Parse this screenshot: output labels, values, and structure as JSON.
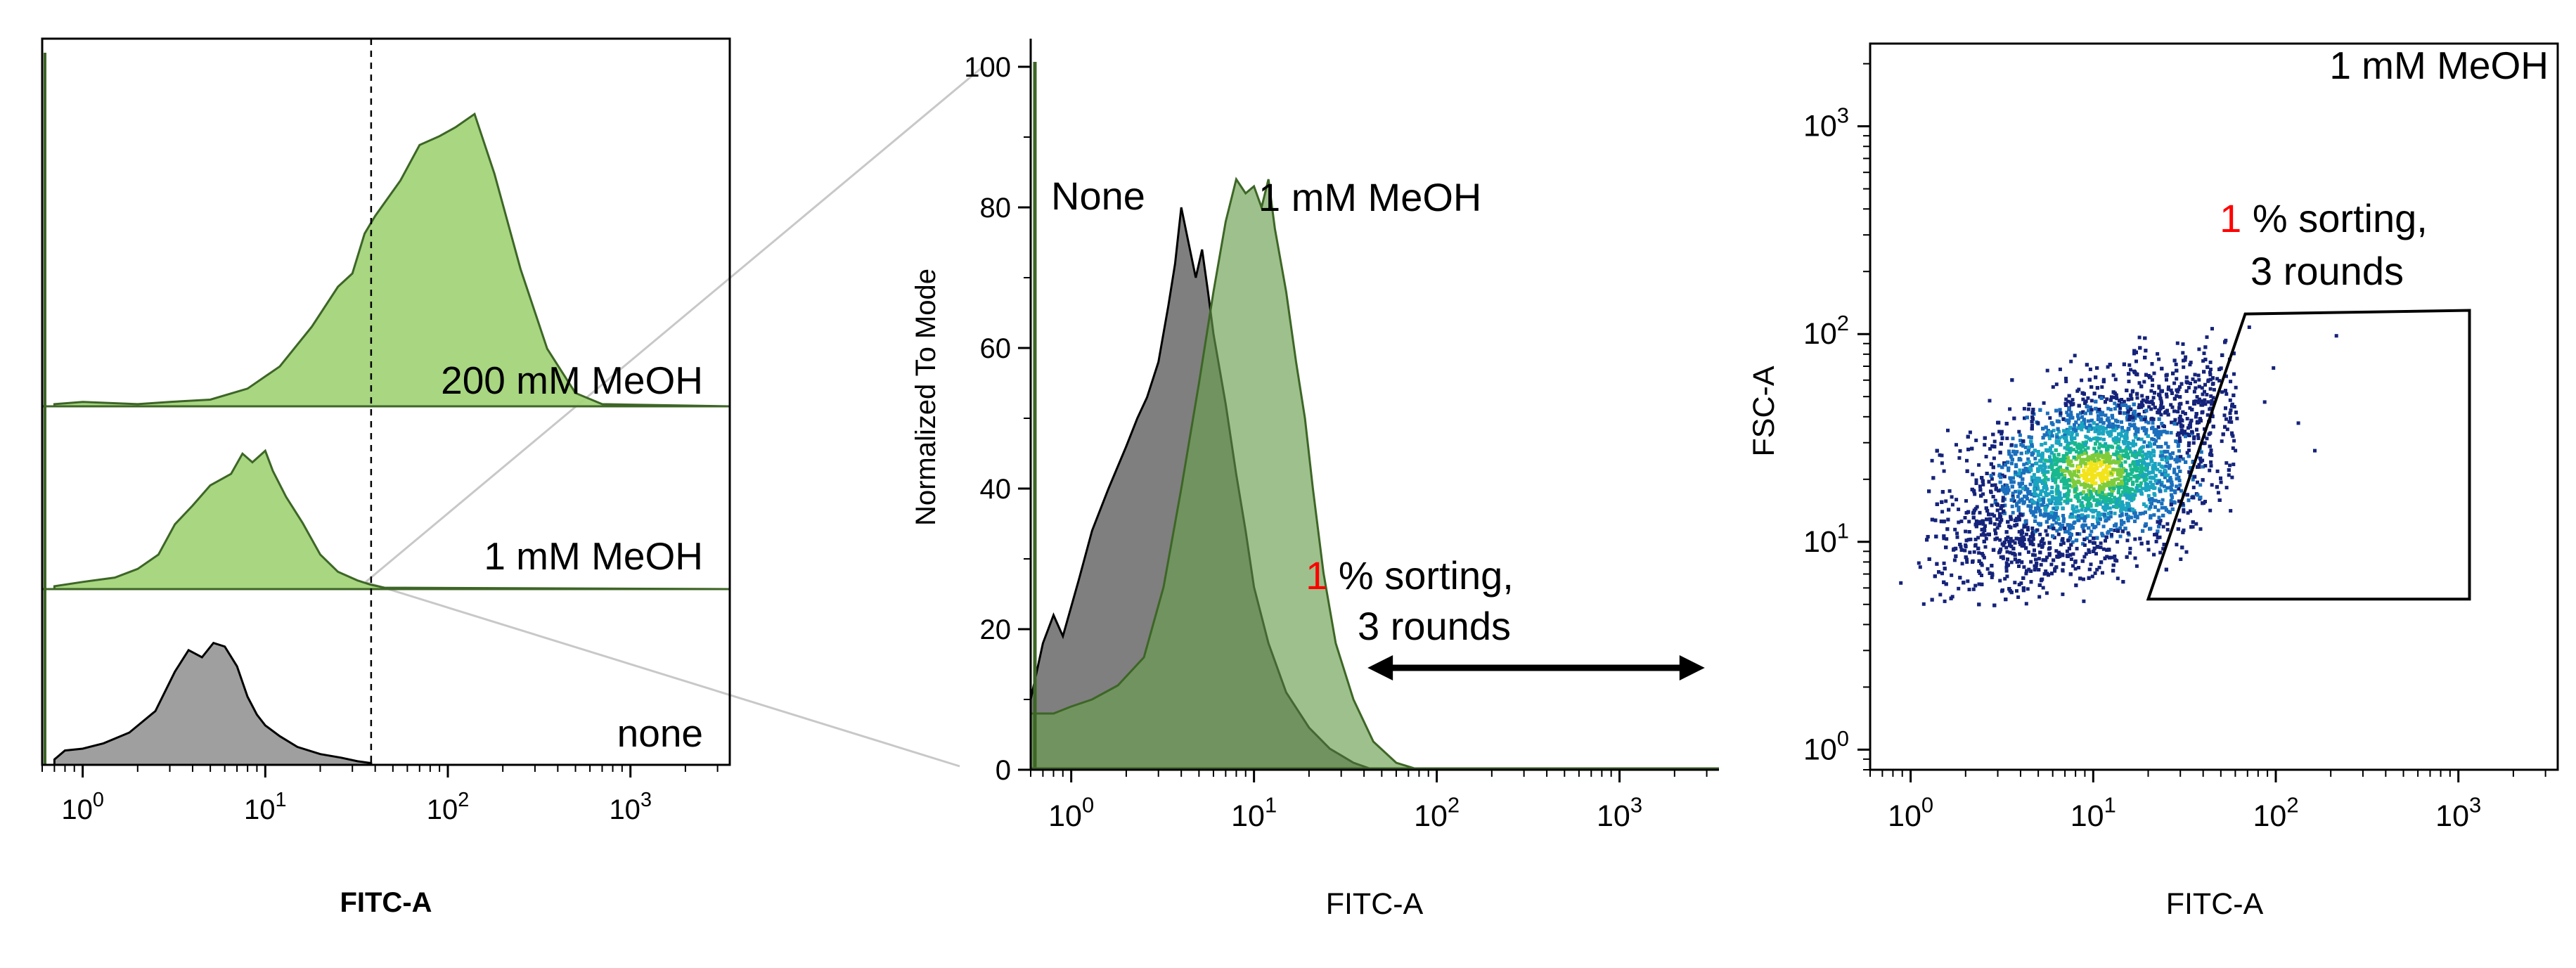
{
  "chart_data": [
    {
      "type": "area",
      "panel": "left",
      "layout": "staggered-overlay histogram",
      "xlabel": "FITC-A",
      "xscale": "log",
      "xlim": [
        0.6,
        3500
      ],
      "x_ticks": [
        {
          "base": "10",
          "exp": "0"
        },
        {
          "base": "10",
          "exp": "1"
        },
        {
          "base": "10",
          "exp": "2"
        },
        {
          "base": "10",
          "exp": "3"
        }
      ],
      "gate_line_x": 38,
      "series": [
        {
          "name": "none",
          "label": "none",
          "color": "#9a9a9a",
          "stroke": "#000000",
          "baseline_level": 0,
          "x": [
            0.7,
            0.8,
            1,
            1.3,
            1.8,
            2.5,
            3.2,
            3.8,
            4.5,
            5.2,
            6,
            7,
            8,
            9,
            10,
            12,
            15,
            20,
            26,
            32,
            38
          ],
          "y": [
            3,
            8,
            9,
            12,
            18,
            30,
            52,
            64,
            60,
            68,
            66,
            55,
            38,
            28,
            22,
            16,
            10,
            6,
            4,
            2,
            1
          ]
        },
        {
          "name": "1 mM MeOH",
          "label": "1 mM MeOH",
          "color": "#a3d47a",
          "stroke": "#3d6626",
          "baseline_level": 1,
          "x": [
            0.7,
            1,
            1.5,
            2,
            2.6,
            3.2,
            4,
            5,
            6.5,
            7.5,
            8.5,
            10,
            11,
            13,
            16,
            20,
            25,
            32,
            38,
            45,
            3500
          ],
          "y": [
            2,
            5,
            8,
            14,
            24,
            45,
            58,
            72,
            80,
            94,
            88,
            96,
            82,
            64,
            46,
            24,
            12,
            6,
            3,
            1,
            0
          ]
        },
        {
          "name": "200 mM MeOH",
          "label": "200 mM MeOH",
          "color": "#a3d47a",
          "stroke": "#3d6626",
          "baseline_level": 2,
          "x": [
            0.7,
            1,
            2,
            3,
            5,
            8,
            12,
            18,
            25,
            30,
            35,
            40,
            55,
            70,
            90,
            110,
            140,
            180,
            250,
            350,
            500,
            700,
            3500
          ],
          "y": [
            1,
            2,
            1,
            2,
            3,
            8,
            18,
            36,
            54,
            60,
            78,
            86,
            102,
            118,
            122,
            126,
            132,
            105,
            62,
            26,
            6,
            1,
            0
          ]
        }
      ]
    },
    {
      "type": "area",
      "panel": "middle",
      "layout": "overlaid histogram",
      "xlabel": "FITC-A",
      "ylabel": "Normalized To Mode",
      "xscale": "log",
      "xlim": [
        0.6,
        3500
      ],
      "ylim": [
        0,
        100
      ],
      "y_ticks": [
        0,
        20,
        40,
        60,
        80,
        100
      ],
      "x_ticks": [
        {
          "base": "10",
          "exp": "0"
        },
        {
          "base": "10",
          "exp": "1"
        },
        {
          "base": "10",
          "exp": "2"
        },
        {
          "base": "10",
          "exp": "3"
        }
      ],
      "series": [
        {
          "name": "None",
          "label": "None",
          "color": "#7f7f7f",
          "stroke": "#000000",
          "x": [
            0.6,
            0.7,
            0.8,
            0.9,
            1.1,
            1.3,
            1.6,
            2,
            2.3,
            2.6,
            3,
            3.4,
            3.7,
            4,
            4.3,
            4.8,
            5.2,
            5.6,
            6,
            7,
            8,
            9,
            10,
            12,
            15,
            20,
            26,
            35,
            45
          ],
          "y": [
            10,
            18,
            22,
            19,
            27,
            34,
            40,
            46,
            50,
            53,
            58,
            66,
            72,
            80,
            76,
            70,
            74,
            68,
            62,
            52,
            42,
            34,
            26,
            18,
            11,
            6,
            3,
            1,
            0
          ]
        },
        {
          "name": "1 mM MeOH",
          "label": "1 mM MeOH",
          "color": "#6a9e4e",
          "stroke": "#3d6626",
          "opacity": 0.65,
          "x": [
            0.6,
            0.8,
            1,
            1.3,
            1.8,
            2.5,
            3.2,
            4,
            5,
            6,
            7,
            8,
            9,
            10,
            11,
            12,
            13,
            15,
            17,
            19,
            21,
            24,
            28,
            35,
            45,
            60,
            80,
            3500
          ],
          "y": [
            8,
            8,
            9,
            10,
            12,
            16,
            26,
            40,
            55,
            68,
            78,
            84,
            82,
            83,
            80,
            84,
            77,
            68,
            58,
            50,
            40,
            28,
            18,
            10,
            4,
            1,
            0,
            0
          ]
        }
      ],
      "annotation": {
        "number": "1",
        "text": " % sorting,",
        "line2": "3 rounds",
        "arrow_x_range": [
          40,
          2800
        ]
      }
    },
    {
      "type": "scatter",
      "panel": "right",
      "layout": "2D density dot plot",
      "title": "1 mM MeOH",
      "xlabel": "FITC-A",
      "ylabel": "FSC-A",
      "xscale": "log",
      "yscale": "log",
      "xlim": [
        0.6,
        3500
      ],
      "ylim": [
        0.8,
        2500
      ],
      "x_ticks": [
        {
          "base": "10",
          "exp": "0"
        },
        {
          "base": "10",
          "exp": "1"
        },
        {
          "base": "10",
          "exp": "2"
        },
        {
          "base": "10",
          "exp": "3"
        }
      ],
      "y_ticks": [
        {
          "base": "10",
          "exp": "0"
        },
        {
          "base": "10",
          "exp": "1"
        },
        {
          "base": "10",
          "exp": "2"
        },
        {
          "base": "10",
          "exp": "3"
        }
      ],
      "population": {
        "center_x": 10,
        "center_y": 22,
        "approx_events": 6000,
        "x_range": [
          0.6,
          60
        ],
        "y_range": [
          5,
          110
        ]
      },
      "gate": {
        "vertices": [
          [
            20,
            5.3
          ],
          [
            68,
            125
          ],
          [
            1150,
            130
          ],
          [
            1150,
            5.3
          ]
        ]
      },
      "annotation": {
        "number": "1",
        "text": " % sorting,",
        "line2": "3 rounds"
      }
    }
  ],
  "colors": {
    "green_fill": "#a3d47a",
    "green_stroke": "#3d6626",
    "grey_fill": "#9a9a9a",
    "highlight_red": "#ff0000"
  }
}
